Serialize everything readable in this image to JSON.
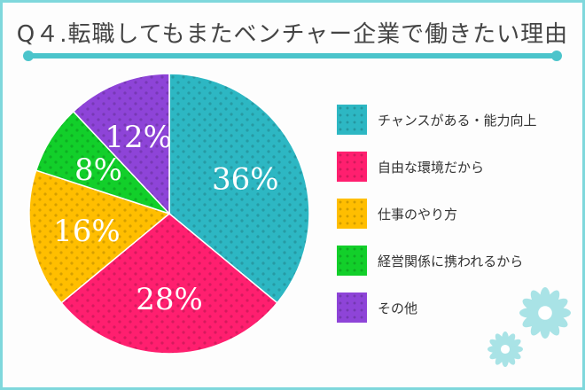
{
  "title": "Q４.転職してもまたベンチャー企業で働きたい理由",
  "chart_data": {
    "type": "pie",
    "title": "Q４.転職してもまたベンチャー企業で働きたい理由",
    "start": "12 o'clock",
    "direction": "clockwise",
    "slices": [
      {
        "label": "チャンスがある・能力向上",
        "value": 36,
        "display": "36%",
        "color": "#2db7c3"
      },
      {
        "label": "自由な環境だから",
        "value": 28,
        "display": "28%",
        "color": "#ff1f6f"
      },
      {
        "label": "仕事のやり方",
        "value": 16,
        "display": "16%",
        "color": "#ffbe00"
      },
      {
        "label": "経営関係に携われるから",
        "value": 8,
        "display": "8%",
        "color": "#12cf2a"
      },
      {
        "label": "その他",
        "value": 12,
        "display": "12%",
        "color": "#8e44d8"
      }
    ],
    "legend_position": "right"
  },
  "legend": [
    {
      "label": "チャンスがある・能力向上",
      "color": "#2db7c3"
    },
    {
      "label": "自由な環境だから",
      "color": "#ff1f6f"
    },
    {
      "label": "仕事のやり方",
      "color": "#ffbe00"
    },
    {
      "label": "経営関係に携われるから",
      "color": "#12cf2a"
    },
    {
      "label": "その他",
      "color": "#8e44d8"
    }
  ],
  "colors": {
    "frame": "#7fd8dc",
    "accent": "#4bc4cb",
    "flower": "#a9e3e6"
  }
}
